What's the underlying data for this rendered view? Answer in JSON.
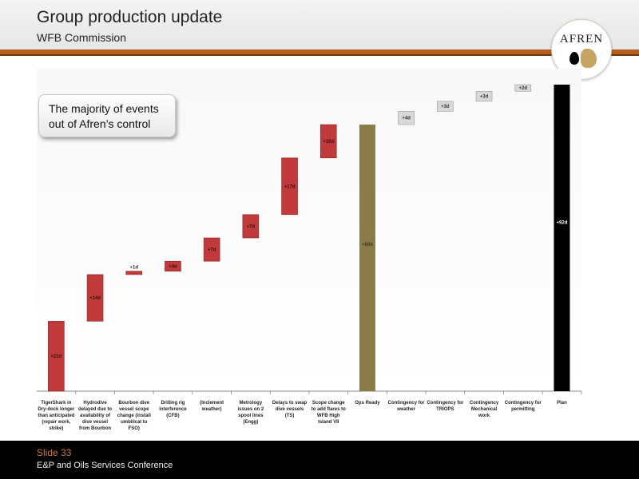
{
  "header": {
    "title": "Group production update",
    "subtitle": "WFB Commission",
    "logo_text": "AFREN"
  },
  "callout": {
    "text": "The majority of events out of Afren’s control"
  },
  "footer": {
    "slide": "Slide 33",
    "conference": "E&P and Oils Services Conference"
  },
  "colors": {
    "accent": "#b85c1e",
    "delay_bar": "#c0393b",
    "ops_ready_bar": "#8a7c48",
    "contingency_bar": "#d8d8d8",
    "plan_bar": "#000000",
    "footer_slide": "#d0793a"
  },
  "chart_data": {
    "type": "waterfall",
    "unit": "days",
    "categories": [
      "TigerShark in Dry-dock longer than anticipated (repair work, strike)",
      "Hydrodive delayed due to availability of dive vessel from Bourbon",
      "Bourbon dive vessel scope change (install umbilical to FSO)",
      "Drilling rig interference (CFB)",
      "(Inclement weather)",
      "Metrology issues on 2 spool lines (Engg)",
      "Delays to swap dive vessels (TS)",
      "Scope change to add flares to WFB High Island VII",
      "Ops Ready",
      "Contingency for weather",
      "Contingency for TRIOPS",
      "Contingency Mechanical work",
      "Contingency for permitting",
      "Plan"
    ],
    "labels": [
      "+21d",
      "+14d",
      "+1d",
      "+3d",
      "+7d",
      "+7d",
      "+17d",
      "+10d",
      "+80d",
      "+4d",
      "+3d",
      "+3d",
      "+2d",
      "+92d"
    ],
    "values": [
      21,
      14,
      1,
      3,
      7,
      7,
      17,
      10,
      80,
      4,
      3,
      3,
      2,
      92
    ],
    "kinds": [
      "delay",
      "delay",
      "delay",
      "delay",
      "delay",
      "delay",
      "delay",
      "delay",
      "total",
      "contingency",
      "contingency",
      "contingency",
      "contingency",
      "total"
    ],
    "ylim": [
      0,
      100
    ],
    "grid": false,
    "legend": "none"
  }
}
